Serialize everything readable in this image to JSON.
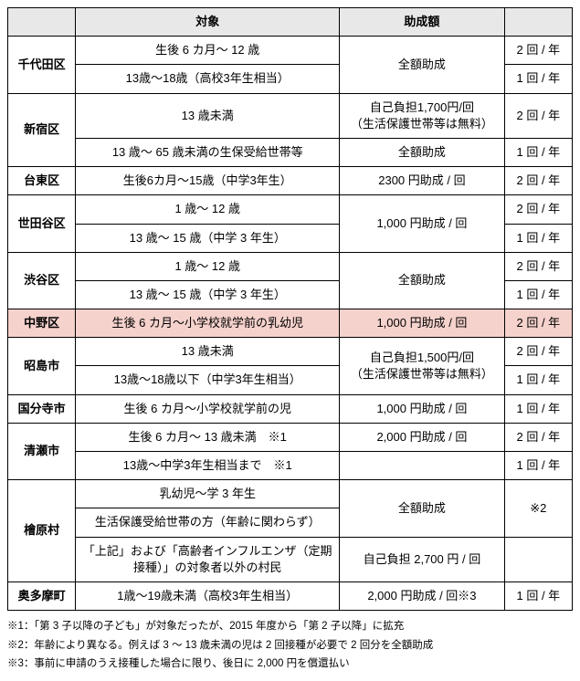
{
  "headers": {
    "ward": "",
    "target": "対象",
    "subsidy": "助成額",
    "freq": ""
  },
  "rows": [
    {
      "ward": "千代田区",
      "target": "生後 6 カ月～ 12 歳",
      "subsidy": "全額助成",
      "freq": "2 回 / 年",
      "wardspan": 2,
      "subspan": 2
    },
    {
      "target": "13歳～18歳（高校3年生相当）",
      "freq": "1 回 / 年"
    },
    {
      "ward": "新宿区",
      "target": "13 歳未満",
      "subsidy": "自己負担1,700円/回\n（生活保護世帯等は無料）",
      "freq": "2 回 / 年",
      "wardspan": 2
    },
    {
      "target": "13 歳～ 65 歳未満の生保受給世帯等",
      "subsidy": "全額助成",
      "freq": "1 回 / 年"
    },
    {
      "ward": "台東区",
      "target": "生後6カ月～15歳（中学3年生）",
      "subsidy": "2300 円助成 / 回",
      "freq": "2 回 / 年"
    },
    {
      "ward": "世田谷区",
      "target": "1 歳～ 12 歳",
      "subsidy": "1,000 円助成 / 回",
      "freq": "2 回 / 年",
      "wardspan": 2,
      "subspan": 2
    },
    {
      "target": "13 歳～ 15 歳（中学 3 年生）",
      "freq": "1 回 / 年"
    },
    {
      "ward": "渋谷区",
      "target": "1 歳～ 12 歳",
      "subsidy": "全額助成",
      "freq": "2 回 / 年",
      "wardspan": 2,
      "subspan": 2
    },
    {
      "target": "13 歳～ 15 歳（中学 3 年生）",
      "freq": "1 回 / 年"
    },
    {
      "ward": "中野区",
      "target": "生後 6 カ月～小学校就学前の乳幼児",
      "subsidy": "1,000 円助成 / 回",
      "freq": "2 回 / 年",
      "highlight": true
    },
    {
      "ward": "昭島市",
      "target": "13 歳未満",
      "subsidy": "自己負担1,500円/回\n（生活保護世帯等は無料）",
      "freq": "2 回 / 年",
      "wardspan": 2,
      "subspan": 2
    },
    {
      "target": "13歳～18歳以下（中学3年生相当）",
      "freq": "1 回 / 年"
    },
    {
      "ward": "国分寺市",
      "target": "生後 6 カ月～小学校就学前の児",
      "subsidy": "1,000 円助成 / 回",
      "freq": "1 回 / 年"
    },
    {
      "ward": "清瀬市",
      "target": "生後 6 カ月～ 13 歳未満　※1",
      "subsidy": "2,000 円助成 / 回",
      "freq": "2 回 / 年",
      "wardspan": 2
    },
    {
      "target": "13歳～中学3年生相当まで　※1",
      "subsidy": "",
      "freq": "1 回 / 年"
    },
    {
      "ward": "檜原村",
      "target": "乳幼児～学 3 年生",
      "subsidy": "全額助成",
      "freq": "※2",
      "wardspan": 3,
      "subspan": 2,
      "freqspan": 2
    },
    {
      "target": "生活保護受給世帯の方（年齢に関わらず）"
    },
    {
      "target": "「上記」および「高齢者インフルエンザ（定期接種）」の対象者以外の村民",
      "subsidy": "自己負担 2,700 円 / 回",
      "freq": ""
    },
    {
      "ward": "奥多摩町",
      "target": "1歳～19歳未満（高校3年生相当）",
      "subsidy": "2,000 円助成 / 回※3",
      "freq": "1 回 / 年"
    }
  ],
  "notes": [
    "※1：「第 3 子以降の子ども」が対象だったが、2015 年度から「第 2 子以降」に拡充",
    "※2：年齢により異なる。例えば 3 ～ 13 歳未満の児は 2 回接種が必要で 2 回分を全額助成",
    "※3：事前に申請のうえ接種した場合に限り、後日に 2,000 円を償還払い"
  ],
  "styling": {
    "header_bg": "#e8e8e8",
    "highlight_bg": "#f6d2cd",
    "border_color": "#000000",
    "font_size_table": 13,
    "font_size_notes": 11.5,
    "col_widths": {
      "ward": 72,
      "target": 280,
      "subsidy": 175,
      "freq": 72
    }
  }
}
